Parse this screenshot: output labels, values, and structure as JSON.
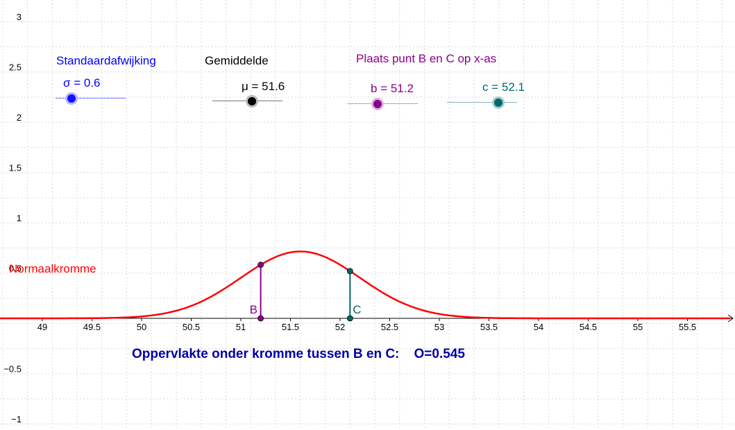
{
  "chart_data": {
    "type": "line",
    "x_range": [
      48.6,
      56
    ],
    "y_range": [
      -1.05,
      3.05
    ],
    "x_ticks": [
      "49",
      "49.5",
      "50",
      "50.5",
      "51",
      "51.5",
      "52",
      "52.5",
      "53",
      "53.5",
      "54",
      "54.5",
      "55",
      "55.5"
    ],
    "y_ticks": [
      "3",
      "2.5",
      "2",
      "1.5",
      "1",
      "0.5",
      "−0.5",
      "−1"
    ],
    "grid": true,
    "curve": {
      "name": "Normaalkromme",
      "function": "normal_pdf",
      "mu": 51.6,
      "sigma": 0.6,
      "color": "#ff0000"
    },
    "points": [
      {
        "label": "B",
        "x": 51.2,
        "color": "#8b008b"
      },
      {
        "label": "C",
        "x": 52.1,
        "color": "#006a6a"
      }
    ]
  },
  "sliders": {
    "sigma": {
      "title": "Standaardafwijking",
      "text": "σ = 0.6",
      "value": 0.6,
      "min": 0.5,
      "max": 1.0,
      "color": "#0000ff",
      "knob": "#1010ff"
    },
    "mu": {
      "title": "Gemiddelde",
      "text": "μ = 51.6",
      "value": 51.6,
      "min": 50,
      "max": 53,
      "color": "#000000",
      "knob": "#000000"
    },
    "b": {
      "text": "b = 51.2",
      "value": 51.2,
      "min": 50,
      "max": 53,
      "color": "#8b008b",
      "knob": "#8b008b"
    },
    "c": {
      "text": "c = 52.1",
      "value": 52.1,
      "min": 50,
      "max": 53,
      "color": "#006a6a",
      "knob": "#006a6a"
    }
  },
  "bc_title": "Plaats punt B en C op x-as",
  "area_text": "Oppervlakte onder kromme tussen B en C:    O=0.545",
  "colors": {
    "area": "#0000aa",
    "grid": "#d9d9d9",
    "curve": "#ff0000",
    "bc_title": "#8b008b"
  }
}
